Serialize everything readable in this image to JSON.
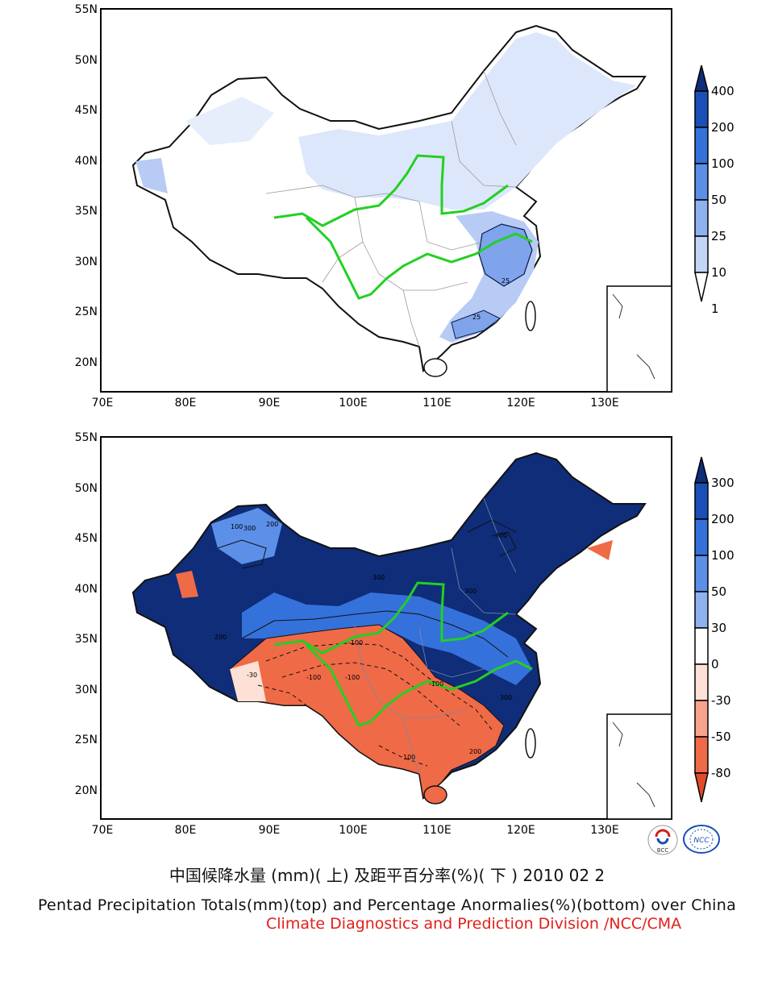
{
  "maps": [
    {
      "id": "totals",
      "lat_labels": [
        "55N",
        "50N",
        "45N",
        "40N",
        "35N",
        "30N",
        "25N",
        "20N"
      ],
      "lon_labels": [
        "70E",
        "80E",
        "90E",
        "100E",
        "110E",
        "120E",
        "130E"
      ],
      "contour_labels": [
        "25",
        "25"
      ],
      "colorbar": {
        "labels": [
          "400",
          "200",
          "100",
          "50",
          "25",
          "10",
          "1"
        ],
        "colors": [
          "#0f2d78",
          "#1a4fb8",
          "#3571db",
          "#5c8fe8",
          "#8eb1f0",
          "#c3d5f7",
          "#ffffff"
        ]
      }
    },
    {
      "id": "anomaly",
      "lat_labels": [
        "55N",
        "50N",
        "45N",
        "40N",
        "35N",
        "30N",
        "25N",
        "20N"
      ],
      "lon_labels": [
        "70E",
        "80E",
        "90E",
        "100E",
        "110E",
        "120E",
        "130E"
      ],
      "contour_labels": [
        "300",
        "200",
        "100",
        "300",
        "300",
        "300",
        "200",
        "-100",
        "-100",
        "-100",
        "-30",
        "-100",
        "100",
        "200",
        "300"
      ],
      "colorbar": {
        "labels": [
          "300",
          "200",
          "100",
          "50",
          "30",
          "0",
          "-30",
          "-50",
          "-80"
        ],
        "colors": [
          "#0f2d78",
          "#1a4fb8",
          "#3571db",
          "#5c8fe8",
          "#8eb1f0",
          "#ffffff",
          "#fde0d6",
          "#f8a48c",
          "#ef6a47",
          "#e24a2a"
        ]
      }
    }
  ],
  "logos": {
    "left": "BCC",
    "right": "NCC"
  },
  "caption": {
    "chinese": "中国候降水量 (mm)( 上) 及距平百分率(%)( 下 ) 2010 02 2",
    "english": "Pentad Precipitation Totals(mm)(top) and Percentage Anormalies(%)(bottom) over China",
    "org": "Climate Diagnostics and Prediction Division /NCC/CMA"
  }
}
